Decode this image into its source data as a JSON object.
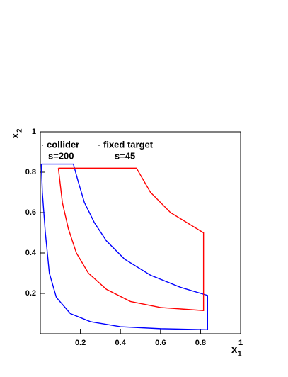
{
  "chart_data": {
    "type": "line",
    "xlabel": "x",
    "xlabel_sub": "1",
    "ylabel": "x",
    "ylabel_sub": "2",
    "xlim": [
      0,
      1
    ],
    "ylim": [
      0,
      1
    ],
    "xticks": [
      0.2,
      0.4,
      0.6,
      0.8,
      1
    ],
    "yticks": [
      0.2,
      0.4,
      0.6,
      0.8,
      1
    ],
    "series": [
      {
        "name": "collider",
        "annotation": "s=200",
        "color": "#0000ff",
        "x": [
          0.005,
          0.165,
          0.19,
          0.22,
          0.27,
          0.33,
          0.42,
          0.55,
          0.7,
          0.835,
          0.835,
          0.6,
          0.4,
          0.25,
          0.15,
          0.08,
          0.045,
          0.025,
          0.01,
          0.005
        ],
        "values": [
          0.84,
          0.84,
          0.75,
          0.65,
          0.55,
          0.46,
          0.37,
          0.29,
          0.23,
          0.19,
          0.02,
          0.025,
          0.035,
          0.06,
          0.1,
          0.18,
          0.3,
          0.5,
          0.7,
          0.84
        ]
      },
      {
        "name": "fixed target",
        "annotation": "s=45",
        "color": "#ff0000",
        "x": [
          0.09,
          0.48,
          0.55,
          0.65,
          0.815,
          0.815,
          0.6,
          0.45,
          0.33,
          0.24,
          0.18,
          0.14,
          0.11,
          0.09
        ],
        "values": [
          0.82,
          0.82,
          0.7,
          0.6,
          0.5,
          0.115,
          0.13,
          0.16,
          0.22,
          0.3,
          0.4,
          0.52,
          0.65,
          0.82
        ]
      }
    ]
  }
}
